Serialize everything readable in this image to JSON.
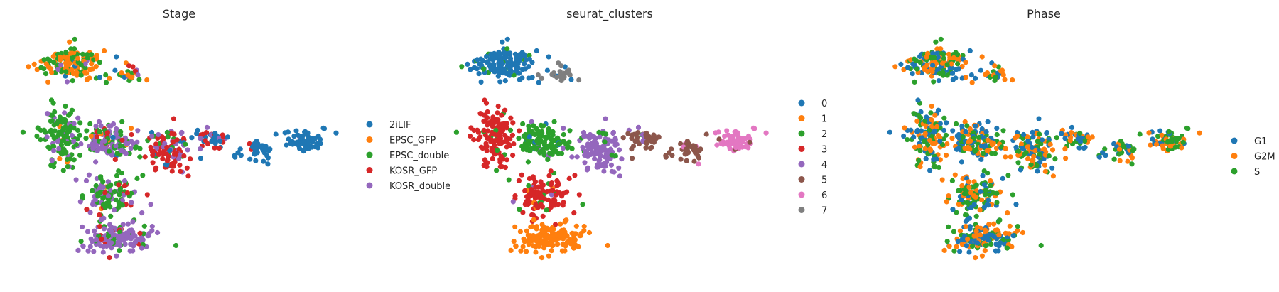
{
  "chart_data": [
    {
      "type": "scatter",
      "title": "Stage",
      "xlabel": "",
      "ylabel": "",
      "grid": false,
      "legend_placement": "right",
      "categories": [
        "2iLIF",
        "EPSC_GFP",
        "EPSC_double",
        "KOSR_GFP",
        "KOSR_double"
      ],
      "colors": [
        "#1f77b4",
        "#ff7f0e",
        "#2ca02c",
        "#d62728",
        "#9467bd"
      ],
      "xlim": [
        0,
        10
      ],
      "ylim": [
        0,
        10
      ],
      "points_per_category": [
        140,
        150,
        250,
        120,
        230
      ]
    },
    {
      "type": "scatter",
      "title": "seurat_clusters",
      "xlabel": "",
      "ylabel": "",
      "grid": false,
      "legend_placement": "right",
      "categories": [
        "0",
        "1",
        "2",
        "3",
        "4",
        "5",
        "6",
        "7"
      ],
      "colors": [
        "#1f77b4",
        "#ff7f0e",
        "#2ca02c",
        "#d62728",
        "#9467bd",
        "#8c564b",
        "#e377c2",
        "#7f7f7f"
      ],
      "xlim": [
        0,
        10
      ],
      "ylim": [
        0,
        10
      ],
      "points_per_category": [
        200,
        190,
        170,
        140,
        150,
        50,
        60,
        20
      ]
    },
    {
      "type": "scatter",
      "title": "Phase",
      "xlabel": "",
      "ylabel": "",
      "grid": false,
      "legend_placement": "right",
      "categories": [
        "G1",
        "G2M",
        "S"
      ],
      "colors": [
        "#1f77b4",
        "#ff7f0e",
        "#2ca02c"
      ],
      "xlim": [
        0,
        10
      ],
      "ylim": [
        0,
        10
      ],
      "points_per_category": [
        320,
        340,
        320
      ]
    }
  ]
}
